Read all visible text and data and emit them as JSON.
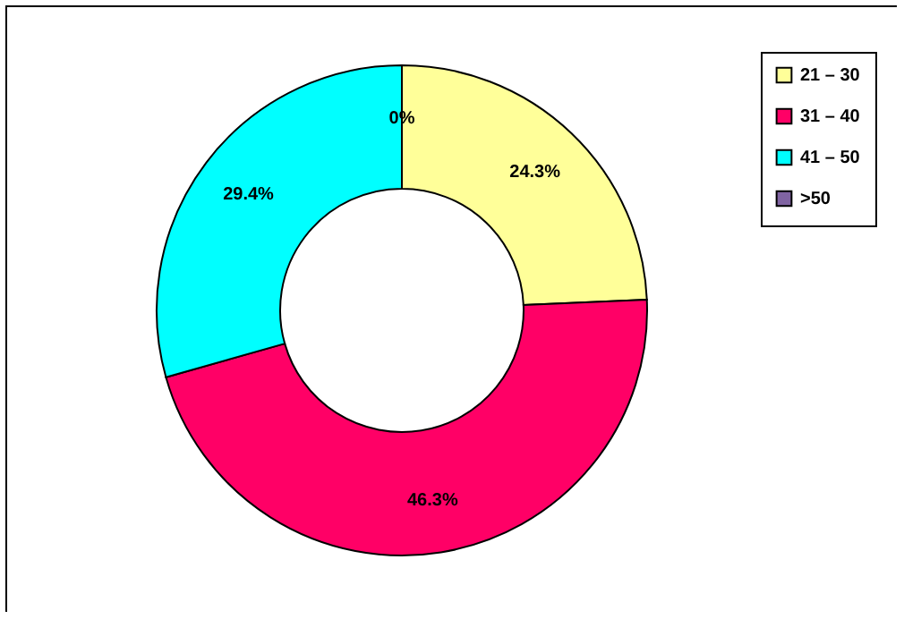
{
  "chart_data": {
    "type": "donut",
    "categories": [
      "21 – 30",
      "31 – 40",
      "41 – 50",
      ">50"
    ],
    "values": [
      24.3,
      46.3,
      29.4,
      0
    ],
    "colors": [
      "#ffff99",
      "#ff0066",
      "#00ffff",
      "#8064a2"
    ],
    "value_labels": [
      "24.3%",
      "46.3%",
      "29.4%",
      "0%"
    ],
    "legend": "top right"
  }
}
